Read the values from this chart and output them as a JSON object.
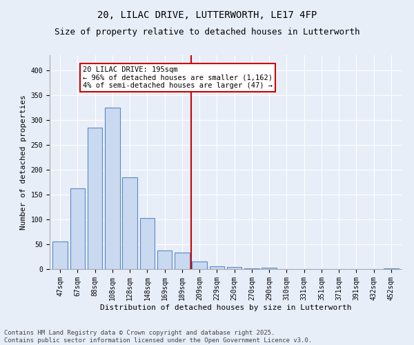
{
  "title_line1": "20, LILAC DRIVE, LUTTERWORTH, LE17 4FP",
  "title_line2": "Size of property relative to detached houses in Lutterworth",
  "xlabel": "Distribution of detached houses by size in Lutterworth",
  "ylabel": "Number of detached properties",
  "bar_labels": [
    "47sqm",
    "67sqm",
    "88sqm",
    "108sqm",
    "128sqm",
    "148sqm",
    "169sqm",
    "189sqm",
    "209sqm",
    "229sqm",
    "250sqm",
    "270sqm",
    "290sqm",
    "310sqm",
    "331sqm",
    "351sqm",
    "371sqm",
    "391sqm",
    "432sqm",
    "452sqm"
  ],
  "bar_values": [
    55,
    162,
    285,
    325,
    185,
    103,
    38,
    33,
    15,
    6,
    4,
    2,
    3,
    0,
    0,
    0,
    0,
    0,
    0,
    2
  ],
  "bar_color": "#c9d9f0",
  "bar_edge_color": "#5a88c8",
  "vline_x": 7.5,
  "vline_color": "#cc0000",
  "annotation_title": "20 LILAC DRIVE: 195sqm",
  "annotation_line1": "← 96% of detached houses are smaller (1,162)",
  "annotation_line2": "4% of semi-detached houses are larger (47) →",
  "annotation_box_color": "#ffffff",
  "annotation_box_edge": "#cc0000",
  "ylim": [
    0,
    430
  ],
  "yticks": [
    0,
    50,
    100,
    150,
    200,
    250,
    300,
    350,
    400
  ],
  "bg_color": "#e8eef8",
  "plot_bg_color": "#e8eef8",
  "footer_line1": "Contains HM Land Registry data © Crown copyright and database right 2025.",
  "footer_line2": "Contains public sector information licensed under the Open Government Licence v3.0.",
  "title_fontsize": 10,
  "subtitle_fontsize": 9,
  "footer_fontsize": 6.5,
  "tick_fontsize": 7,
  "axis_label_fontsize": 8,
  "annot_fontsize": 7.5
}
